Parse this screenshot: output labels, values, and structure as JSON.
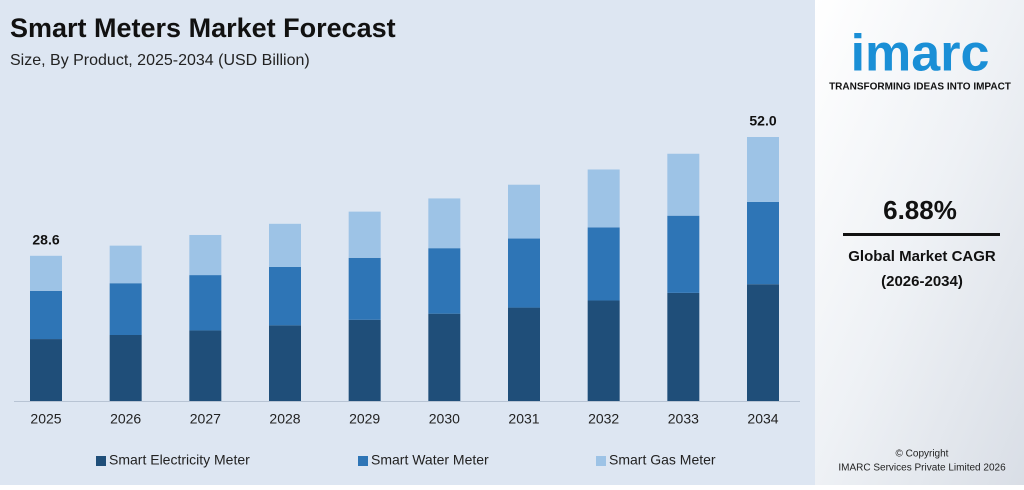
{
  "chart_data": {
    "type": "stacked-bar",
    "title": "Smart Meters Market Forecast",
    "subtitle": "Size, By Product, 2025-2034 (USD Billion)",
    "categories": [
      "2025",
      "2026",
      "2027",
      "2028",
      "2029",
      "2030",
      "2031",
      "2032",
      "2033",
      "2034"
    ],
    "series": [
      {
        "name": "Smart Electricity Meter",
        "color": "#1f4e79",
        "values": [
          12.2,
          13.0,
          13.9,
          14.9,
          16.0,
          17.2,
          18.4,
          19.8,
          21.3,
          23.0
        ]
      },
      {
        "name": "Smart Water Meter",
        "color": "#2e75b6",
        "values": [
          9.5,
          10.2,
          10.9,
          11.5,
          12.2,
          12.9,
          13.6,
          14.4,
          15.2,
          16.2
        ]
      },
      {
        "name": "Smart Gas Meter",
        "color": "#9dc3e6",
        "values": [
          6.9,
          7.4,
          7.9,
          8.5,
          9.1,
          9.8,
          10.6,
          11.4,
          12.2,
          12.8
        ]
      }
    ],
    "totals": [
      28.6,
      null,
      null,
      null,
      null,
      null,
      null,
      null,
      null,
      52.0
    ],
    "total_labels": [
      "28.6",
      null,
      null,
      null,
      null,
      null,
      null,
      null,
      null,
      "52.0"
    ]
  },
  "panel": {
    "logo": "imarc",
    "tagline": "TRANSFORMING IDEAS INTO IMPACT",
    "cagr": "6.88%",
    "cagr_label": "Global Market CAGR",
    "cagr_period": "(2026-2034)",
    "copyright": "© Copyright",
    "company": "IMARC Services Private Limited 2026"
  }
}
